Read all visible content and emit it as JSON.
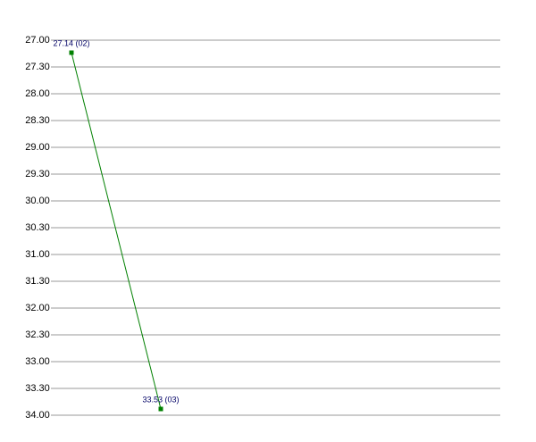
{
  "chart_data": {
    "type": "line",
    "inverted": true,
    "categories": [
      null,
      null
    ],
    "series": [
      {
        "color": "#008000",
        "values": [
          27.233333,
          33.883333
        ],
        "value_labels": [
          "27.14 (02)",
          "33.53 (03)"
        ]
      }
    ],
    "ylim": [
      27,
      34
    ],
    "yticks": [
      {
        "value": 27,
        "label": "27.00"
      },
      {
        "value": 27.5,
        "label": "27.30"
      },
      {
        "value": 28,
        "label": "28.00"
      },
      {
        "value": 28.5,
        "label": "28.30"
      },
      {
        "value": 29,
        "label": "29.00"
      },
      {
        "value": 29.5,
        "label": "29.30"
      },
      {
        "value": 30,
        "label": "30.00"
      },
      {
        "value": 30.5,
        "label": "30.30"
      },
      {
        "value": 31,
        "label": "31.00"
      },
      {
        "value": 31.5,
        "label": "31.30"
      },
      {
        "value": 32,
        "label": "32.00"
      },
      {
        "value": 32.5,
        "label": "32.30"
      },
      {
        "value": 33,
        "label": "33.00"
      },
      {
        "value": 33.5,
        "label": "33.30"
      },
      {
        "value": 34,
        "label": "34.00"
      }
    ],
    "grid": true
  }
}
